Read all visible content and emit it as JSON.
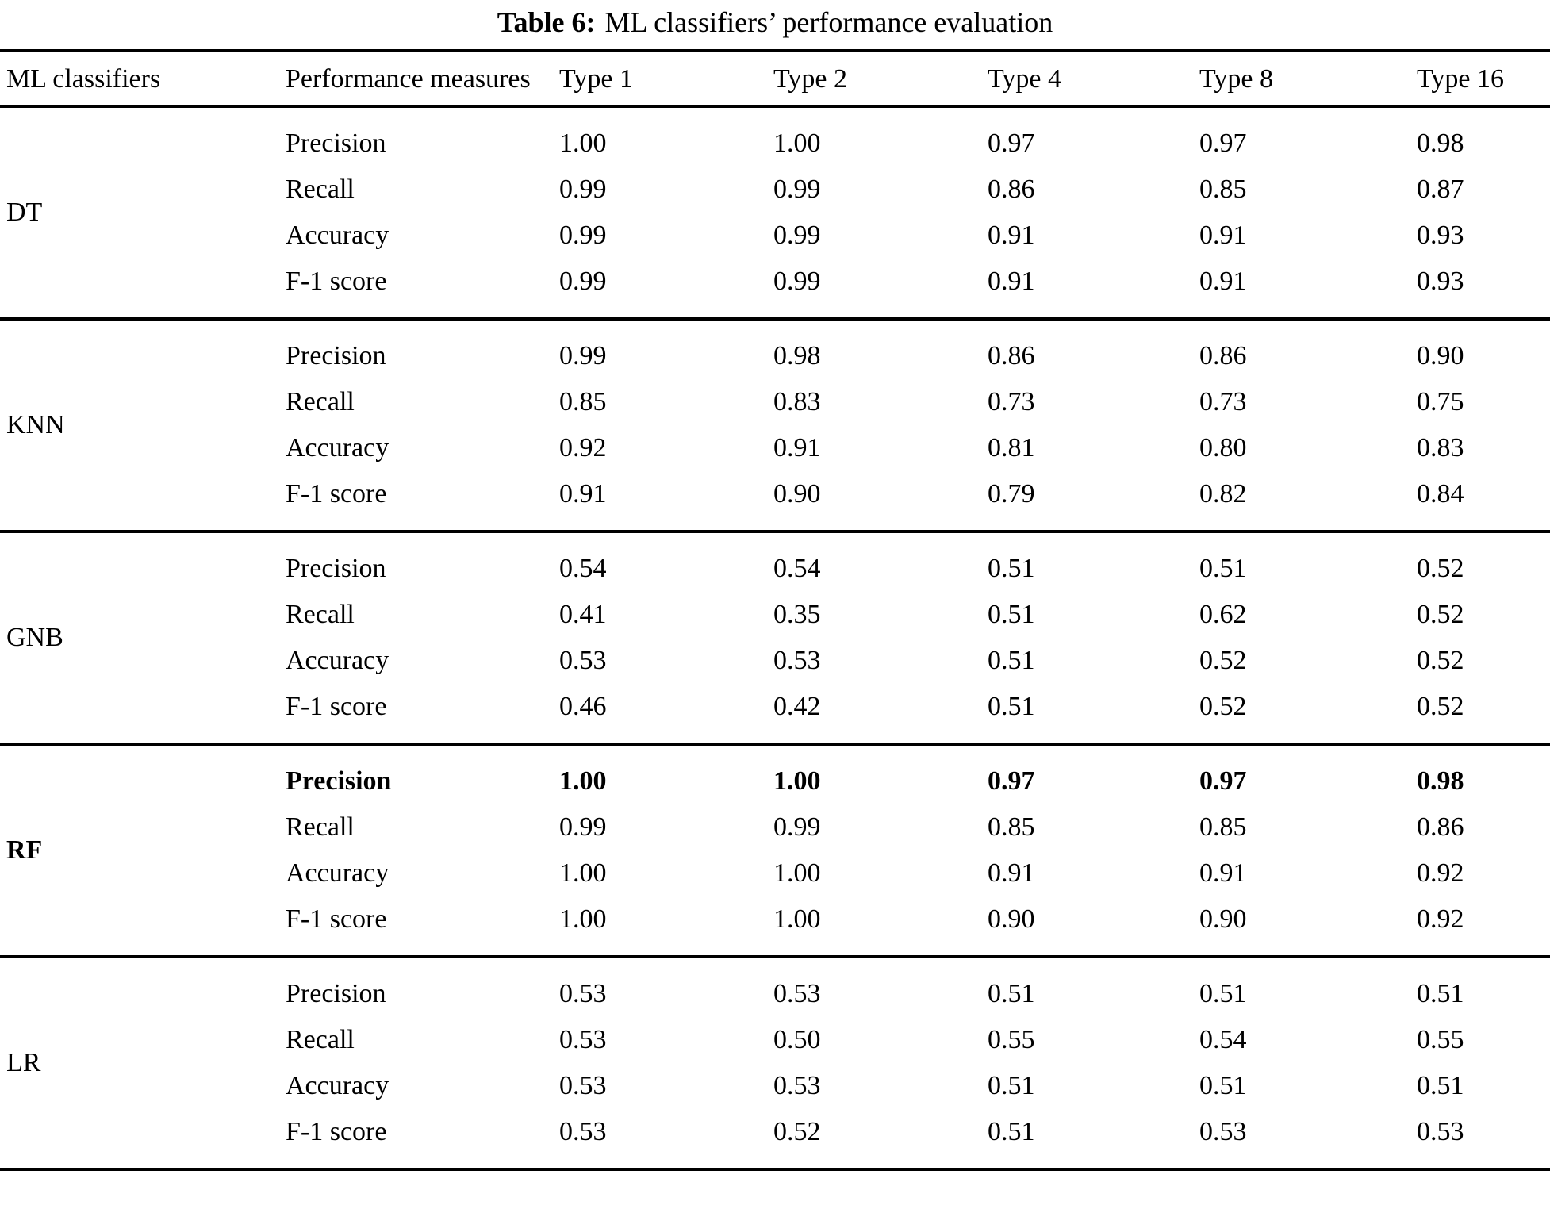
{
  "caption": {
    "label": "Table 6:",
    "text": "ML classifiers’ performance evaluation"
  },
  "table": {
    "columns": [
      "ML classifiers",
      "Performance measures",
      "Type 1",
      "Type 2",
      "Type 4",
      "Type 8",
      "Type 16"
    ],
    "groups": [
      {
        "classifier": "DT",
        "rows": [
          {
            "measure": "Precision",
            "bold": false,
            "values": [
              "1.00",
              "1.00",
              "0.97",
              "0.97",
              "0.98"
            ]
          },
          {
            "measure": "Recall",
            "bold": false,
            "values": [
              "0.99",
              "0.99",
              "0.86",
              "0.85",
              "0.87"
            ]
          },
          {
            "measure": "Accuracy",
            "bold": false,
            "values": [
              "0.99",
              "0.99",
              "0.91",
              "0.91",
              "0.93"
            ]
          },
          {
            "measure": "F-1 score",
            "bold": false,
            "values": [
              "0.99",
              "0.99",
              "0.91",
              "0.91",
              "0.93"
            ]
          }
        ]
      },
      {
        "classifier": "KNN",
        "rows": [
          {
            "measure": "Precision",
            "bold": false,
            "values": [
              "0.99",
              "0.98",
              "0.86",
              "0.86",
              "0.90"
            ]
          },
          {
            "measure": "Recall",
            "bold": false,
            "values": [
              "0.85",
              "0.83",
              "0.73",
              "0.73",
              "0.75"
            ]
          },
          {
            "measure": "Accuracy",
            "bold": false,
            "values": [
              "0.92",
              "0.91",
              "0.81",
              "0.80",
              "0.83"
            ]
          },
          {
            "measure": "F-1 score",
            "bold": false,
            "values": [
              "0.91",
              "0.90",
              "0.79",
              "0.82",
              "0.84"
            ]
          }
        ]
      },
      {
        "classifier": "GNB",
        "rows": [
          {
            "measure": "Precision",
            "bold": false,
            "values": [
              "0.54",
              "0.54",
              "0.51",
              "0.51",
              "0.52"
            ]
          },
          {
            "measure": "Recall",
            "bold": false,
            "values": [
              "0.41",
              "0.35",
              "0.51",
              "0.62",
              "0.52"
            ]
          },
          {
            "measure": "Accuracy",
            "bold": false,
            "values": [
              "0.53",
              "0.53",
              "0.51",
              "0.52",
              "0.52"
            ]
          },
          {
            "measure": "F-1 score",
            "bold": false,
            "values": [
              "0.46",
              "0.42",
              "0.51",
              "0.52",
              "0.52"
            ]
          }
        ]
      },
      {
        "classifier": "RF",
        "rows": [
          {
            "measure": "Precision",
            "bold": true,
            "values": [
              "1.00",
              "1.00",
              "0.97",
              "0.97",
              "0.98"
            ]
          },
          {
            "measure": "Recall",
            "bold": false,
            "values": [
              "0.99",
              "0.99",
              "0.85",
              "0.85",
              "0.86"
            ]
          },
          {
            "measure": "Accuracy",
            "bold": false,
            "values": [
              "1.00",
              "1.00",
              "0.91",
              "0.91",
              "0.92"
            ]
          },
          {
            "measure": "F-1 score",
            "bold": false,
            "values": [
              "1.00",
              "1.00",
              "0.90",
              "0.90",
              "0.92"
            ]
          }
        ]
      },
      {
        "classifier": "LR",
        "rows": [
          {
            "measure": "Precision",
            "bold": false,
            "values": [
              "0.53",
              "0.53",
              "0.51",
              "0.51",
              "0.51"
            ]
          },
          {
            "measure": "Recall",
            "bold": false,
            "values": [
              "0.53",
              "0.50",
              "0.55",
              "0.54",
              "0.55"
            ]
          },
          {
            "measure": "Accuracy",
            "bold": false,
            "values": [
              "0.53",
              "0.53",
              "0.51",
              "0.51",
              "0.51"
            ]
          },
          {
            "measure": "F-1 score",
            "bold": false,
            "values": [
              "0.53",
              "0.52",
              "0.51",
              "0.53",
              "0.53"
            ]
          }
        ]
      }
    ]
  }
}
